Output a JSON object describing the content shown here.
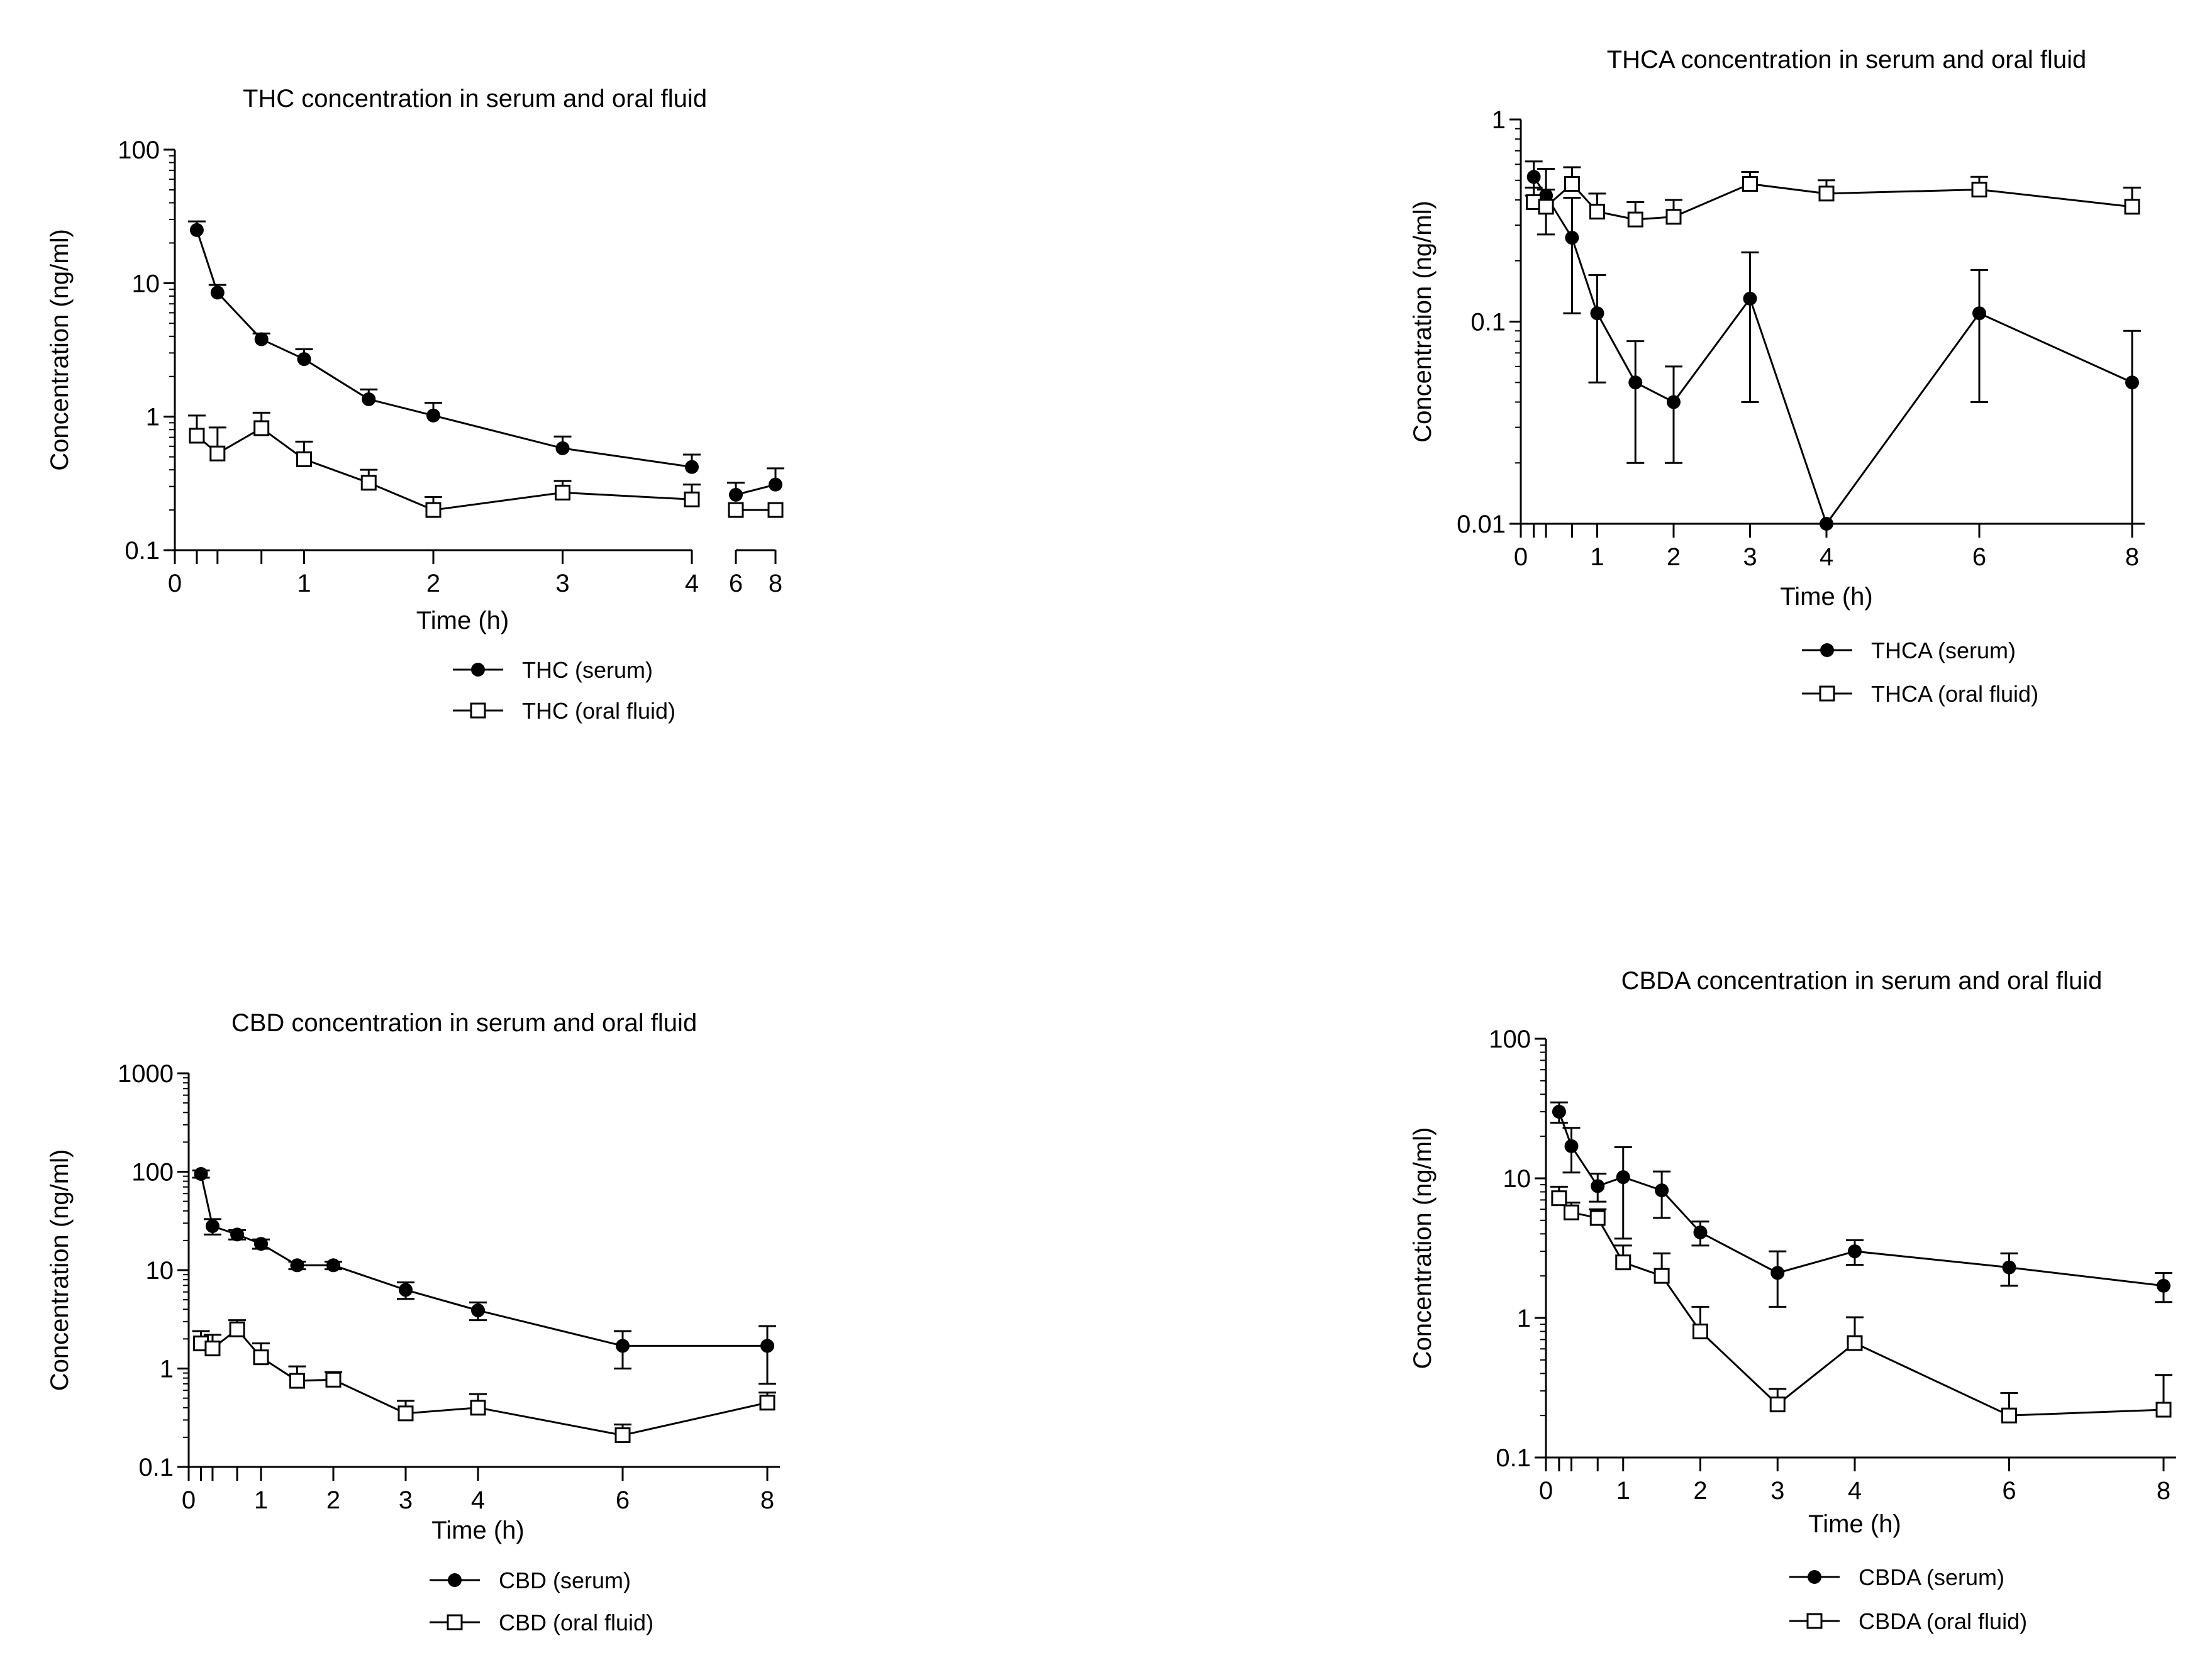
{
  "chart_data": [
    {
      "type": "line",
      "title": "THC concentration in serum and oral fluid",
      "xlabel": "Time (h)",
      "ylabel": "Concentration (ng/ml)",
      "yscale": "log",
      "ylim": [
        0.1,
        100
      ],
      "xlim": [
        0,
        8
      ],
      "x_axis_break": [
        4,
        6
      ],
      "xticks": [
        0,
        1,
        2,
        3,
        4,
        6,
        8
      ],
      "yticks": [
        0.1,
        1,
        10,
        100
      ],
      "ytick_labels": [
        "0.1",
        "1",
        "10",
        "100"
      ],
      "legend_position": "below-right",
      "series": [
        {
          "name": "THC (serum)",
          "marker": "filled-circle",
          "x": [
            0.17,
            0.33,
            0.67,
            1,
            1.5,
            2,
            3,
            4,
            6,
            8
          ],
          "y": [
            25,
            8.5,
            3.8,
            2.7,
            1.35,
            1.02,
            0.58,
            0.42,
            0.26,
            0.31
          ],
          "err": [
            4,
            1.2,
            0.4,
            0.5,
            0.25,
            0.25,
            0.13,
            0.1,
            0.06,
            0.1
          ]
        },
        {
          "name": "THC (oral fluid)",
          "marker": "open-square",
          "x": [
            0.17,
            0.33,
            0.67,
            1,
            1.5,
            2,
            3,
            4,
            6,
            8
          ],
          "y": [
            0.72,
            0.53,
            0.82,
            0.48,
            0.32,
            0.2,
            0.27,
            0.24,
            0.2,
            0.2
          ],
          "err": [
            0.3,
            0.3,
            0.25,
            0.17,
            0.08,
            0.05,
            0.06,
            0.07,
            0.0,
            0.0
          ]
        }
      ]
    },
    {
      "type": "line",
      "title": "THCA concentration in serum and oral fluid",
      "xlabel": "Time (h)",
      "ylabel": "Concentration (ng/ml)",
      "yscale": "log",
      "ylim": [
        0.01,
        1
      ],
      "xlim": [
        0,
        8
      ],
      "xticks": [
        0,
        1,
        2,
        3,
        4,
        6,
        8
      ],
      "yticks": [
        0.01,
        0.1,
        1
      ],
      "ytick_labels": [
        "0.01",
        "0.1",
        "1"
      ],
      "legend_position": "below-right",
      "series": [
        {
          "name": "THCA (serum)",
          "marker": "filled-circle",
          "x": [
            0.17,
            0.33,
            0.67,
            1,
            1.5,
            2,
            3,
            4,
            6,
            8
          ],
          "y": [
            0.52,
            0.42,
            0.26,
            0.11,
            0.05,
            0.04,
            0.13,
            0.01,
            0.11,
            0.05
          ],
          "err": [
            0.1,
            0.15,
            0.15,
            0.06,
            0.03,
            0.02,
            0.09,
            0.0,
            0.07,
            0.04
          ]
        },
        {
          "name": "THCA (oral fluid)",
          "marker": "open-square",
          "x": [
            0.17,
            0.33,
            0.67,
            1,
            1.5,
            2,
            3,
            4,
            6,
            8
          ],
          "y": [
            0.39,
            0.37,
            0.48,
            0.35,
            0.32,
            0.33,
            0.48,
            0.43,
            0.45,
            0.37
          ],
          "err": [
            0.07,
            0.08,
            0.1,
            0.08,
            0.07,
            0.07,
            0.07,
            0.07,
            0.07,
            0.09
          ]
        }
      ]
    },
    {
      "type": "line",
      "title": "CBD concentration in serum and oral fluid",
      "xlabel": "Time (h)",
      "ylabel": "Concentration (ng/ml)",
      "yscale": "log",
      "ylim": [
        0.1,
        1000
      ],
      "xlim": [
        0,
        8
      ],
      "xticks": [
        0,
        1,
        2,
        3,
        4,
        6,
        8
      ],
      "yticks": [
        0.1,
        1,
        10,
        100,
        1000
      ],
      "ytick_labels": [
        "0.1",
        "1",
        "10",
        "100",
        "1000"
      ],
      "legend_position": "below-right",
      "series": [
        {
          "name": "CBD (serum)",
          "marker": "filled-circle",
          "x": [
            0.17,
            0.33,
            0.67,
            1,
            1.5,
            2,
            3,
            4,
            6,
            8
          ],
          "y": [
            95,
            28,
            23,
            18.5,
            11.2,
            11.2,
            6.3,
            3.9,
            1.7,
            1.7
          ],
          "err": [
            8,
            5,
            2.5,
            2,
            1,
            1,
            1.2,
            0.8,
            0.7,
            1.0
          ]
        },
        {
          "name": "CBD (oral fluid)",
          "marker": "open-square",
          "x": [
            0.17,
            0.33,
            0.67,
            1,
            1.5,
            2,
            3,
            4,
            6,
            8
          ],
          "y": [
            1.8,
            1.6,
            2.5,
            1.3,
            0.75,
            0.77,
            0.35,
            0.4,
            0.21,
            0.45
          ],
          "err": [
            0.6,
            0.6,
            0.6,
            0.5,
            0.3,
            0.15,
            0.12,
            0.15,
            0.06,
            0.12
          ]
        }
      ]
    },
    {
      "type": "line",
      "title": "CBDA concentration in serum and oral fluid",
      "xlabel": "Time (h)",
      "ylabel": "Concentration (ng/ml)",
      "yscale": "log",
      "ylim": [
        0.1,
        100
      ],
      "xlim": [
        0,
        8
      ],
      "xticks": [
        0,
        1,
        2,
        3,
        4,
        6,
        8
      ],
      "yticks": [
        0.1,
        1,
        10,
        100
      ],
      "ytick_labels": [
        "0.1",
        "1",
        "10",
        "100"
      ],
      "legend_position": "below-right",
      "series": [
        {
          "name": "CBDA (serum)",
          "marker": "filled-circle",
          "x": [
            0.17,
            0.33,
            0.67,
            1,
            1.5,
            2,
            3,
            4,
            6,
            8
          ],
          "y": [
            30,
            17,
            8.8,
            10.2,
            8.2,
            4.1,
            2.1,
            3.0,
            2.3,
            1.7
          ],
          "err": [
            5,
            6,
            2,
            6.5,
            3,
            0.8,
            0.9,
            0.6,
            0.6,
            0.4
          ]
        },
        {
          "name": "CBDA (oral fluid)",
          "marker": "open-square",
          "x": [
            0.17,
            0.33,
            0.67,
            1,
            1.5,
            2,
            3,
            4,
            6,
            8
          ],
          "y": [
            7.2,
            5.7,
            5.2,
            2.5,
            2.0,
            0.8,
            0.24,
            0.66,
            0.2,
            0.22
          ],
          "err": [
            1.5,
            1.0,
            0.8,
            0.8,
            0.9,
            0.4,
            0.07,
            0.35,
            0.09,
            0.17
          ]
        }
      ]
    }
  ]
}
